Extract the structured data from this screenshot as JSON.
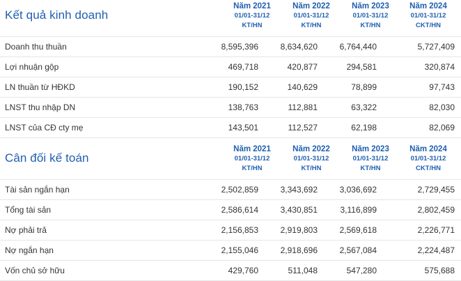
{
  "income": {
    "title": "Kết quả kinh doanh",
    "columns": [
      {
        "year": "Năm 2021",
        "period": "01/01-31/12",
        "audit": "KT/HN"
      },
      {
        "year": "Năm 2022",
        "period": "01/01-31/12",
        "audit": "KT/HN"
      },
      {
        "year": "Năm 2023",
        "period": "01/01-31/12",
        "audit": "KT/HN"
      },
      {
        "year": "Năm 2024",
        "period": "01/01-31/12",
        "audit": "CKT/HN"
      }
    ],
    "rows": [
      {
        "label": "Doanh thu thuần",
        "values": [
          "8,595,396",
          "8,634,620",
          "6,764,440",
          "5,727,409"
        ]
      },
      {
        "label": "Lợi nhuận gộp",
        "values": [
          "469,718",
          "420,877",
          "294,581",
          "320,874"
        ]
      },
      {
        "label": "LN thuần từ HĐKD",
        "values": [
          "190,152",
          "140,629",
          "78,899",
          "97,743"
        ]
      },
      {
        "label": "LNST thu nhập DN",
        "values": [
          "138,763",
          "112,881",
          "63,322",
          "82,030"
        ]
      },
      {
        "label": "LNST của CĐ cty mẹ",
        "values": [
          "143,501",
          "112,527",
          "62,198",
          "82,069"
        ]
      }
    ]
  },
  "balance": {
    "title": "Cân đối kế toán",
    "columns": [
      {
        "year": "Năm 2021",
        "period": "01/01-31/12",
        "audit": "KT/HN"
      },
      {
        "year": "Năm 2022",
        "period": "01/01-31/12",
        "audit": "KT/HN"
      },
      {
        "year": "Năm 2023",
        "period": "01/01-31/12",
        "audit": "KT/HN"
      },
      {
        "year": "Năm 2024",
        "period": "01/01-31/12",
        "audit": "CKT/HN"
      }
    ],
    "rows": [
      {
        "label": "Tài sản ngắn hạn",
        "values": [
          "2,502,859",
          "3,343,692",
          "3,036,692",
          "2,729,455"
        ]
      },
      {
        "label": "Tổng tài sản",
        "values": [
          "2,586,614",
          "3,430,851",
          "3,116,899",
          "2,802,459"
        ]
      },
      {
        "label": "Nợ phải trả",
        "values": [
          "2,156,853",
          "2,919,803",
          "2,569,618",
          "2,226,771"
        ]
      },
      {
        "label": "Nợ ngắn hạn",
        "values": [
          "2,155,046",
          "2,918,696",
          "2,567,084",
          "2,224,487"
        ]
      },
      {
        "label": "Vốn chủ sở hữu",
        "values": [
          "429,760",
          "511,048",
          "547,280",
          "575,688"
        ]
      }
    ]
  }
}
